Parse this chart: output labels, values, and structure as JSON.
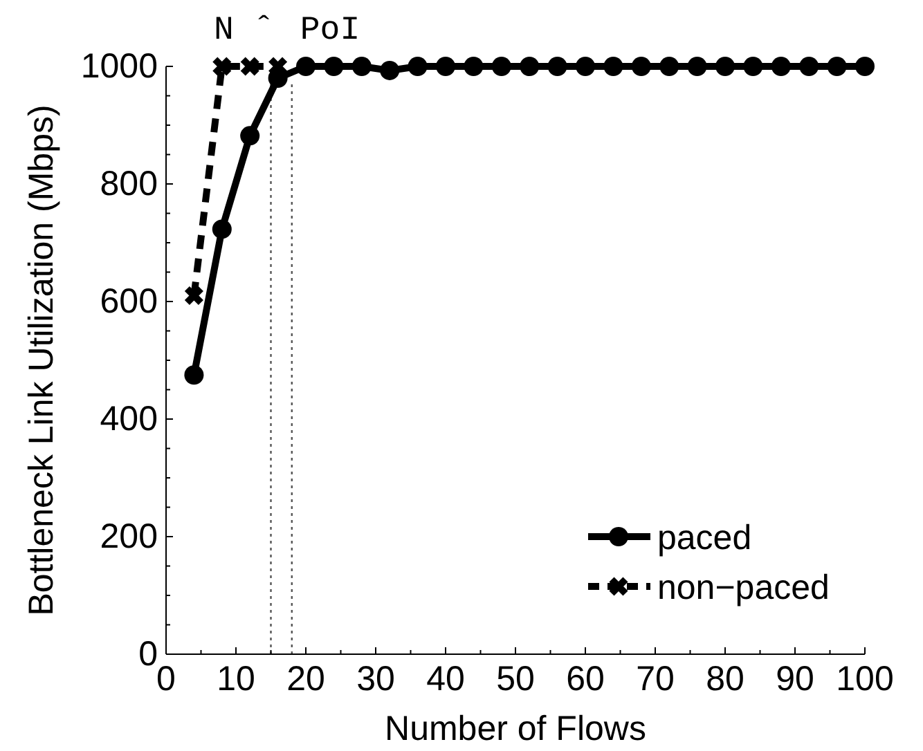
{
  "chart_data": {
    "type": "line",
    "xlabel": "Number of Flows",
    "ylabel": "Bottleneck Link Utilization (Mbps)",
    "xlim": [
      0,
      100
    ],
    "ylim": [
      0,
      1000
    ],
    "xticks": [
      0,
      {
        "value": 5,
        "label": null
      },
      10,
      {
        "value": 15,
        "label": null
      },
      20,
      {
        "value": 25,
        "label": null
      },
      30,
      {
        "value": 35,
        "label": null
      },
      40,
      {
        "value": 45,
        "label": null
      },
      50,
      {
        "value": 55,
        "label": null
      },
      60,
      {
        "value": 65,
        "label": null
      },
      70,
      {
        "value": 75,
        "label": null
      },
      80,
      {
        "value": 85,
        "label": null
      },
      90,
      {
        "value": 95,
        "label": null
      },
      100
    ],
    "yticks": [
      0,
      {
        "value": 50,
        "label": null
      },
      {
        "value": 100,
        "label": null
      },
      {
        "value": 150,
        "label": null
      },
      200,
      {
        "value": 250,
        "label": null
      },
      {
        "value": 300,
        "label": null
      },
      {
        "value": 350,
        "label": null
      },
      400,
      {
        "value": 450,
        "label": null
      },
      {
        "value": 500,
        "label": null
      },
      {
        "value": 550,
        "label": null
      },
      600,
      {
        "value": 650,
        "label": null
      },
      {
        "value": 700,
        "label": null
      },
      {
        "value": 750,
        "label": null
      },
      800,
      {
        "value": 850,
        "label": null
      },
      {
        "value": 900,
        "label": null
      },
      {
        "value": 950,
        "label": null
      },
      1000
    ],
    "grid": false,
    "legend": "bottom right",
    "series": [
      {
        "name": "paced",
        "color": "#000000",
        "marker": "circle",
        "line_style": "solid",
        "x": [
          4,
          8,
          12,
          16,
          20,
          24,
          28,
          32,
          36,
          40,
          44,
          48,
          52,
          56,
          60,
          64,
          68,
          72,
          76,
          80,
          84,
          88,
          92,
          96,
          100
        ],
        "values": [
          475,
          723,
          882,
          980,
          1000,
          1000,
          1000,
          993,
          1000,
          1000,
          1000,
          1000,
          1000,
          1000,
          1000,
          1000,
          1000,
          1000,
          1000,
          1000,
          1000,
          1000,
          1000,
          1000,
          1000
        ]
      },
      {
        "name": "non−paced",
        "color": "#000000",
        "marker": "cross",
        "line_style": "dashed",
        "x": [
          4,
          8,
          12,
          16
        ],
        "values": [
          610,
          1000,
          1000,
          1000
        ]
      }
    ],
    "ref_lines": [
      {
        "axis": "x",
        "value": 15,
        "label": "N ˆ",
        "color": "#555555",
        "line_style": "dotted"
      },
      {
        "axis": "x",
        "value": 18,
        "label": "PoI",
        "color": "#555555",
        "line_style": "dotted"
      }
    ]
  }
}
